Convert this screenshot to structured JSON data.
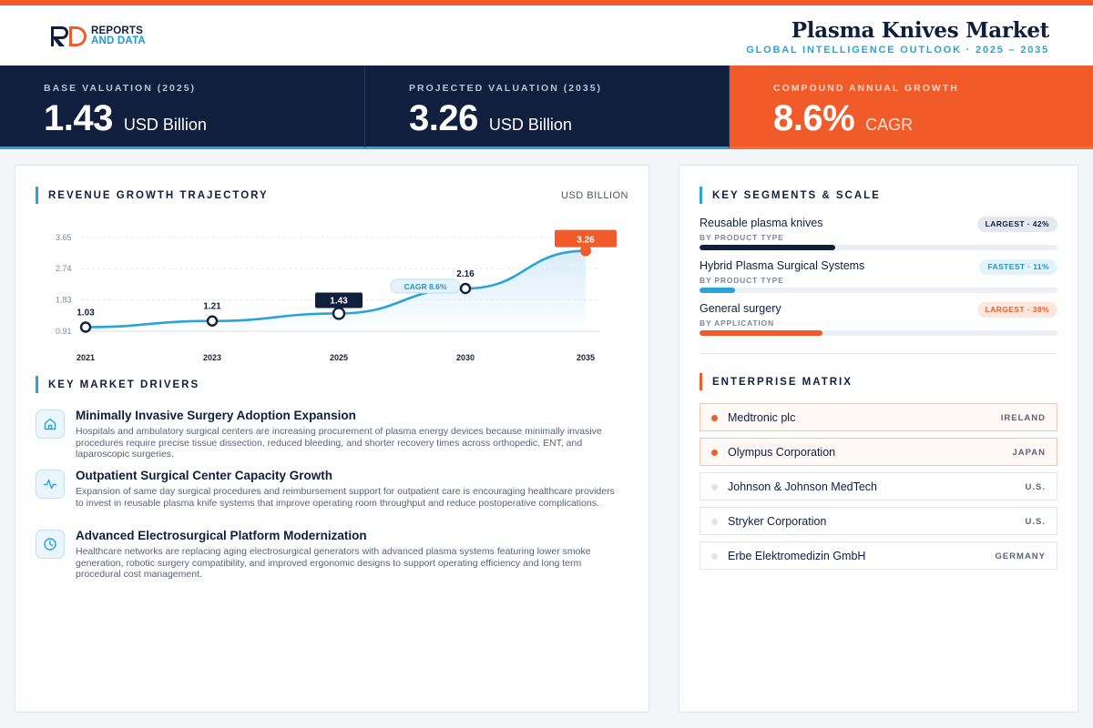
{
  "header": {
    "logo_line1": "REPORTS",
    "logo_line2": "AND DATA",
    "title": "Plasma Knives Market",
    "subtitle": "GLOBAL INTELLIGENCE OUTLOOK  ·  2025 – 2035"
  },
  "stats": [
    {
      "label": "BASE VALUATION (2025)",
      "value": "1.43",
      "unit": "USD Billion"
    },
    {
      "label": "PROJECTED VALUATION (2035)",
      "value": "3.26",
      "unit": "USD Billion"
    },
    {
      "label": "COMPOUND ANNUAL GROWTH",
      "value": "8.6%",
      "unit": "CAGR"
    }
  ],
  "revenue": {
    "section_title": "REVENUE GROWTH TRAJECTORY",
    "unit_label": "USD BILLION"
  },
  "chart_data": {
    "type": "area",
    "x": [
      "2021",
      "2023",
      "2025",
      "2030",
      "2035"
    ],
    "values": [
      1.03,
      1.21,
      1.43,
      2.16,
      3.26
    ],
    "data_labels": [
      "1.03",
      "1.21",
      "1.43",
      "2.16",
      "3.26"
    ],
    "y_ticks": [
      "3.65",
      "2.74",
      "1.83",
      "0.91"
    ],
    "ylim": [
      0.91,
      3.65
    ],
    "grid": true,
    "annotation": "CAGR 8.6%",
    "highlight": {
      "2025": "dark",
      "2035": "orange"
    },
    "colors": {
      "line": "#29a3da",
      "fill": "#d6ecf8",
      "dark": "#0f1f3d",
      "orange": "#f15a29"
    }
  },
  "drivers": {
    "section_title": "KEY MARKET DRIVERS",
    "items": [
      {
        "icon": "hospital-icon",
        "title": "Minimally Invasive Surgery Adoption Expansion",
        "desc": "Hospitals and ambulatory surgical centers are increasing procurement of plasma energy devices because minimally invasive procedures require precise tissue dissection, reduced bleeding, and shorter recovery times across orthopedic, ENT, and laparoscopic surgeries."
      },
      {
        "icon": "activity-icon",
        "title": "Outpatient Surgical Center Capacity Growth",
        "desc": "Expansion of same day surgical procedures and reimbursement support for outpatient care is encouraging healthcare providers to invest in reusable plasma knife systems that improve operating room throughput and reduce postoperative complications."
      },
      {
        "icon": "clock-icon",
        "title": "Advanced Electrosurgical Platform Modernization",
        "desc": "Healthcare networks are replacing aging electrosurgical generators with advanced plasma systems featuring lower smoke generation, robotic surgery compatibility, and improved ergonomic designs to support operating efficiency and long term procedural cost management."
      }
    ]
  },
  "segments": {
    "section_title": "KEY SEGMENTS & SCALE",
    "items": [
      {
        "name": "Reusable plasma knives",
        "sub": "BY PRODUCT TYPE",
        "badge": "LARGEST · 42%",
        "share": 0.42,
        "color": "#0f1f3d"
      },
      {
        "name": "Hybrid Plasma Surgical Systems",
        "sub": "BY PRODUCT TYPE",
        "badge": "FASTEST · 11%",
        "share": 0.11,
        "color": "#29a3da"
      },
      {
        "name": "General surgery",
        "sub": "BY APPLICATION",
        "badge": "LARGEST · 38%",
        "share": 0.38,
        "color": "#f15a29"
      }
    ]
  },
  "matrix": {
    "section_title": "ENTERPRISE MATRIX",
    "items": [
      {
        "name": "Medtronic plc",
        "country": "IRELAND",
        "highlight": true
      },
      {
        "name": "Olympus Corporation",
        "country": "JAPAN",
        "highlight": true
      },
      {
        "name": "Johnson & Johnson MedTech",
        "country": "U.S.",
        "highlight": false
      },
      {
        "name": "Stryker Corporation",
        "country": "U.S.",
        "highlight": false
      },
      {
        "name": "Erbe Elektromedizin GmbH",
        "country": "GERMANY",
        "highlight": false
      }
    ]
  }
}
